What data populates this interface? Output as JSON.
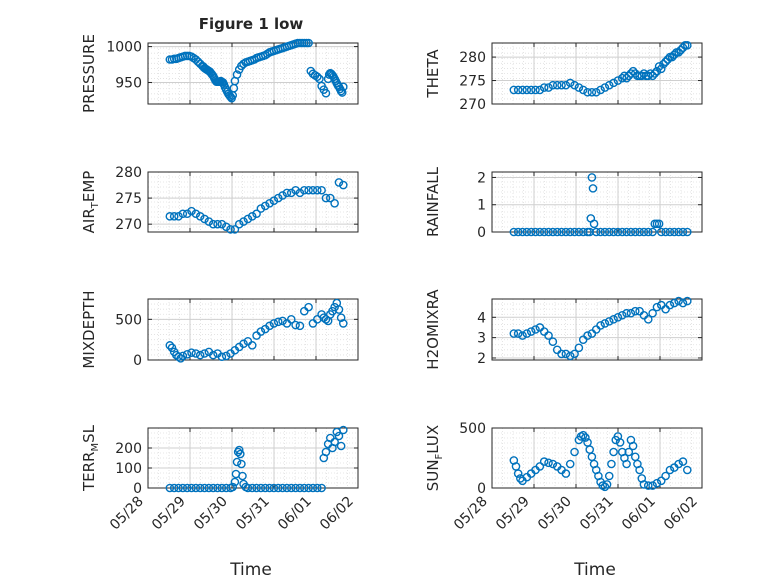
{
  "figure": {
    "title": "Figure 1 low",
    "xlabel_left": "Time",
    "xlabel_right": "Time"
  },
  "style": {
    "marker_color": "#0072BD",
    "axis_color": "#262626",
    "grid_color": "#dfdfdf"
  },
  "x_axis": {
    "range": [
      "05/28",
      "06/02"
    ],
    "ticks": [
      "05/28",
      "05/29",
      "05/30",
      "05/31",
      "06/01",
      "06/02"
    ],
    "tick_labels_shown_on": [
      "TERR_MSL",
      "SUN_FLUX"
    ]
  },
  "chart_data": [
    {
      "type": "scatter",
      "id": "pressure",
      "ylabel": "PRESSURE",
      "ylim": [
        920,
        1005
      ],
      "yticks": [
        "950",
        "1000"
      ],
      "ytick_values": [
        950,
        1000
      ],
      "grid": true,
      "x": [
        0.0,
        0.1,
        0.2,
        0.3,
        0.4,
        0.5,
        0.6,
        0.7,
        0.8,
        0.9,
        1.0,
        1.1,
        1.2,
        1.3,
        1.4,
        1.5,
        1.55,
        1.6,
        1.65,
        1.7,
        1.75,
        1.8,
        1.85,
        1.9,
        1.95,
        2.0,
        2.05,
        2.1,
        2.15,
        2.2,
        2.25,
        2.3,
        2.35,
        2.4,
        2.45,
        2.5,
        2.55,
        2.6,
        2.65,
        2.7,
        2.75,
        2.8,
        2.85,
        2.9,
        2.95,
        3.0,
        3.1,
        3.2,
        3.3,
        3.4,
        3.5,
        3.6,
        3.7,
        3.8,
        3.9,
        4.0,
        4.1,
        4.2,
        4.3,
        4.4,
        4.5,
        4.6,
        4.7,
        4.8,
        4.9,
        5.0,
        5.1,
        5.2,
        5.3,
        5.4,
        5.5,
        5.6,
        5.7,
        5.8,
        5.9,
        6.0,
        6.1,
        6.2,
        6.3,
        6.4,
        6.5,
        6.6,
        6.7,
        6.8,
        6.9,
        7.0,
        7.1,
        7.2,
        7.3,
        7.35,
        7.4,
        7.45,
        7.5,
        7.55,
        7.6,
        7.65,
        7.7,
        7.75,
        7.8,
        7.85,
        7.9,
        7.95,
        8.0
      ],
      "y": [
        982,
        982,
        983,
        983,
        984,
        985,
        986,
        987,
        987,
        987,
        986,
        984,
        982,
        979,
        976,
        973,
        972,
        970,
        969,
        968,
        967,
        966,
        965,
        963,
        961,
        959,
        956,
        953,
        951,
        951,
        951,
        951,
        952,
        951,
        950,
        947,
        943,
        940,
        937,
        934,
        932,
        930,
        928,
        932,
        942,
        952,
        961,
        968,
        973,
        976,
        978,
        979,
        980,
        981,
        982,
        984,
        985,
        986,
        987,
        988,
        990,
        992,
        993,
        994,
        995,
        996,
        997,
        998,
        999,
        1000,
        1001,
        1002,
        1003,
        1004,
        1005,
        1006,
        1006,
        1007,
        1007,
        1005,
        966,
        962,
        960,
        958,
        955,
        945,
        940,
        935,
        955,
        961,
        963,
        962,
        960,
        958,
        955,
        952,
        949,
        946,
        944,
        941,
        938,
        936,
        944
      ]
    },
    {
      "type": "scatter",
      "id": "theta",
      "ylabel": "THETA",
      "ylim": [
        270,
        283
      ],
      "yticks": [
        "270",
        "275",
        "280"
      ],
      "ytick_values": [
        270,
        275,
        280
      ],
      "grid": true,
      "x": [
        0.0,
        0.2,
        0.4,
        0.6,
        0.8,
        1.0,
        1.2,
        1.4,
        1.6,
        1.8,
        2.0,
        2.2,
        2.4,
        2.6,
        2.8,
        3.0,
        3.2,
        3.4,
        3.6,
        3.8,
        4.0,
        4.2,
        4.4,
        4.6,
        4.8,
        5.0,
        5.1,
        5.2,
        5.3,
        5.4,
        5.5,
        5.6,
        5.7,
        5.8,
        5.9,
        6.0,
        6.1,
        6.2,
        6.3,
        6.4,
        6.5,
        6.6,
        6.7,
        6.8,
        6.9,
        7.0,
        7.1,
        7.2,
        7.3,
        7.4,
        7.5,
        7.6,
        7.7,
        7.8,
        7.9,
        8.0
      ],
      "y": [
        273,
        273,
        273,
        273,
        273,
        273,
        273,
        273.5,
        273.5,
        274,
        274,
        274,
        274,
        274.5,
        274,
        273.5,
        273,
        272.5,
        272.5,
        272.5,
        273,
        273.5,
        274,
        274.5,
        275,
        275.5,
        276,
        275.5,
        276,
        276.5,
        277,
        276.5,
        276,
        276,
        276,
        276.5,
        276,
        276,
        276.5,
        276,
        276.5,
        277,
        278,
        277.5,
        278.5,
        279,
        279.5,
        280,
        280,
        280.5,
        281,
        281,
        281.5,
        282,
        282.5,
        282.5
      ]
    },
    {
      "type": "scatter",
      "id": "air_temp",
      "ylabel": "AIR",
      "ylabel_sub": "T",
      "ylabel_suffix": "EMP",
      "ylim": [
        268.5,
        280
      ],
      "yticks": [
        "270",
        "275",
        "280"
      ],
      "ytick_values": [
        270,
        275,
        280
      ],
      "grid": true,
      "x": [
        0.0,
        0.2,
        0.4,
        0.6,
        0.8,
        1.0,
        1.2,
        1.4,
        1.6,
        1.8,
        2.0,
        2.2,
        2.4,
        2.6,
        2.8,
        3.0,
        3.2,
        3.4,
        3.6,
        3.8,
        4.0,
        4.2,
        4.4,
        4.6,
        4.8,
        5.0,
        5.2,
        5.4,
        5.6,
        5.8,
        6.0,
        6.2,
        6.4,
        6.6,
        6.8,
        7.0,
        7.2,
        7.4,
        7.6,
        7.8,
        8.0
      ],
      "y": [
        271.5,
        271.5,
        271.5,
        272,
        272,
        272.5,
        272,
        271.5,
        271,
        270.5,
        270,
        270,
        270,
        269.5,
        269,
        269,
        270,
        270.5,
        271,
        271.5,
        272,
        273,
        273.5,
        274,
        274.5,
        275,
        275.5,
        276,
        276,
        276.5,
        276,
        276.5,
        276.5,
        276.5,
        276.5,
        276.5,
        275,
        275,
        274,
        278,
        277.5
      ]
    },
    {
      "type": "scatter",
      "id": "rainfall",
      "ylabel": "RAINFALL",
      "ylim": [
        0,
        2.2
      ],
      "yticks": [
        "0",
        "1",
        "2"
      ],
      "ytick_values": [
        0,
        1,
        2
      ],
      "grid": true,
      "x": [
        0.0,
        0.2,
        0.4,
        0.6,
        0.8,
        1.0,
        1.2,
        1.4,
        1.6,
        1.8,
        2.0,
        2.2,
        2.4,
        2.6,
        2.8,
        3.0,
        3.2,
        3.4,
        3.5,
        3.55,
        3.6,
        3.65,
        3.7,
        3.8,
        4.0,
        4.2,
        4.4,
        4.6,
        4.8,
        5.0,
        5.2,
        5.4,
        5.6,
        5.8,
        6.0,
        6.2,
        6.4,
        6.5,
        6.6,
        6.7,
        6.8,
        7.0,
        7.2,
        7.4,
        7.6,
        7.8,
        8.0
      ],
      "y": [
        0,
        0,
        0,
        0,
        0,
        0,
        0,
        0,
        0,
        0,
        0,
        0,
        0,
        0,
        0,
        0,
        0,
        0,
        0,
        0.5,
        2,
        1.6,
        0.3,
        0,
        0,
        0,
        0,
        0,
        0,
        0,
        0,
        0,
        0,
        0,
        0,
        0,
        0,
        0.3,
        0.3,
        0.3,
        0,
        0,
        0,
        0,
        0,
        0,
        0
      ]
    },
    {
      "type": "scatter",
      "id": "mixdepth",
      "ylabel": "MIXDEPTH",
      "ylim": [
        0,
        750
      ],
      "yticks": [
        "0",
        "500"
      ],
      "ytick_values": [
        0,
        500
      ],
      "grid": true,
      "x": [
        0.0,
        0.1,
        0.2,
        0.3,
        0.4,
        0.5,
        0.6,
        0.8,
        1.0,
        1.2,
        1.4,
        1.6,
        1.8,
        2.0,
        2.2,
        2.4,
        2.6,
        2.8,
        3.0,
        3.2,
        3.4,
        3.6,
        3.8,
        4.0,
        4.2,
        4.4,
        4.6,
        4.8,
        5.0,
        5.2,
        5.4,
        5.6,
        5.8,
        6.0,
        6.2,
        6.4,
        6.6,
        6.8,
        7.0,
        7.1,
        7.2,
        7.3,
        7.4,
        7.5,
        7.6,
        7.7,
        7.8,
        7.9,
        8.0
      ],
      "y": [
        180,
        150,
        100,
        60,
        40,
        20,
        50,
        70,
        90,
        80,
        60,
        80,
        100,
        60,
        80,
        40,
        50,
        80,
        120,
        160,
        200,
        230,
        180,
        300,
        350,
        380,
        420,
        450,
        470,
        480,
        450,
        500,
        430,
        420,
        600,
        650,
        450,
        500,
        560,
        520,
        500,
        480,
        560,
        600,
        650,
        700,
        620,
        520,
        450
      ]
    },
    {
      "type": "scatter",
      "id": "h2omixra",
      "ylabel": "H2OMIXRA",
      "ylim": [
        1.9,
        4.9
      ],
      "yticks": [
        "2",
        "3",
        "4"
      ],
      "ytick_values": [
        2,
        3,
        4
      ],
      "grid": true,
      "x": [
        0.0,
        0.2,
        0.4,
        0.6,
        0.8,
        1.0,
        1.2,
        1.4,
        1.6,
        1.8,
        2.0,
        2.2,
        2.4,
        2.6,
        2.8,
        3.0,
        3.2,
        3.4,
        3.6,
        3.8,
        4.0,
        4.2,
        4.4,
        4.6,
        4.8,
        5.0,
        5.2,
        5.4,
        5.6,
        5.8,
        6.0,
        6.2,
        6.4,
        6.6,
        6.8,
        7.0,
        7.2,
        7.4,
        7.6,
        7.8,
        8.0
      ],
      "y": [
        3.2,
        3.2,
        3.1,
        3.2,
        3.3,
        3.4,
        3.5,
        3.3,
        3.1,
        2.8,
        2.4,
        2.2,
        2.2,
        2.1,
        2.2,
        2.5,
        2.9,
        3.1,
        3.2,
        3.4,
        3.6,
        3.7,
        3.8,
        3.9,
        4.0,
        4.1,
        4.2,
        4.2,
        4.3,
        4.3,
        4.1,
        3.9,
        4.2,
        4.5,
        4.6,
        4.4,
        4.6,
        4.7,
        4.8,
        4.7,
        4.8
      ]
    },
    {
      "type": "scatter",
      "id": "terr_msl",
      "ylabel": "TERR",
      "ylabel_sub": "M",
      "ylabel_suffix": "SL",
      "ylim": [
        0,
        300
      ],
      "yticks": [
        "0",
        "100",
        "200"
      ],
      "ytick_values": [
        0,
        100,
        200
      ],
      "grid": true,
      "x": [
        0.0,
        0.2,
        0.4,
        0.6,
        0.8,
        1.0,
        1.2,
        1.4,
        1.6,
        1.8,
        2.0,
        2.2,
        2.4,
        2.6,
        2.8,
        2.9,
        3.0,
        3.05,
        3.1,
        3.15,
        3.2,
        3.25,
        3.3,
        3.35,
        3.4,
        3.5,
        3.6,
        3.8,
        4.0,
        4.2,
        4.4,
        4.6,
        4.8,
        5.0,
        5.2,
        5.4,
        5.6,
        5.8,
        6.0,
        6.2,
        6.4,
        6.6,
        6.8,
        7.0,
        7.1,
        7.2,
        7.3,
        7.4,
        7.5,
        7.6,
        7.7,
        7.8,
        7.9,
        8.0
      ],
      "y": [
        0,
        0,
        0,
        0,
        0,
        0,
        0,
        0,
        0,
        0,
        0,
        0,
        0,
        0,
        0,
        5,
        30,
        70,
        130,
        180,
        190,
        170,
        120,
        60,
        20,
        5,
        0,
        0,
        0,
        0,
        0,
        0,
        0,
        0,
        0,
        0,
        0,
        0,
        0,
        0,
        0,
        0,
        0,
        0,
        150,
        180,
        220,
        250,
        200,
        230,
        280,
        260,
        210,
        290
      ]
    },
    {
      "type": "scatter",
      "id": "sun_flux",
      "ylabel": "SUN",
      "ylabel_sub": "F",
      "ylabel_suffix": "LUX",
      "ylim": [
        0,
        500
      ],
      "yticks": [
        "0",
        "500"
      ],
      "ytick_values": [
        0,
        500
      ],
      "grid": true,
      "x": [
        0.0,
        0.1,
        0.2,
        0.3,
        0.4,
        0.6,
        0.8,
        1.0,
        1.2,
        1.4,
        1.6,
        1.8,
        2.0,
        2.2,
        2.4,
        2.6,
        2.8,
        3.0,
        3.1,
        3.2,
        3.3,
        3.4,
        3.5,
        3.6,
        3.7,
        3.8,
        3.9,
        4.0,
        4.1,
        4.2,
        4.3,
        4.4,
        4.5,
        4.6,
        4.7,
        4.8,
        4.9,
        5.0,
        5.1,
        5.2,
        5.3,
        5.4,
        5.5,
        5.6,
        5.7,
        5.8,
        5.9,
        6.0,
        6.2,
        6.4,
        6.6,
        6.8,
        7.0,
        7.2,
        7.4,
        7.6,
        7.8,
        8.0
      ],
      "y": [
        230,
        180,
        120,
        80,
        60,
        90,
        120,
        150,
        180,
        220,
        210,
        200,
        180,
        150,
        120,
        200,
        300,
        400,
        430,
        440,
        420,
        380,
        320,
        260,
        200,
        150,
        100,
        50,
        20,
        10,
        30,
        100,
        200,
        300,
        400,
        430,
        380,
        300,
        250,
        200,
        300,
        400,
        350,
        260,
        200,
        150,
        80,
        30,
        20,
        20,
        40,
        60,
        100,
        150,
        170,
        200,
        220,
        150
      ]
    }
  ]
}
